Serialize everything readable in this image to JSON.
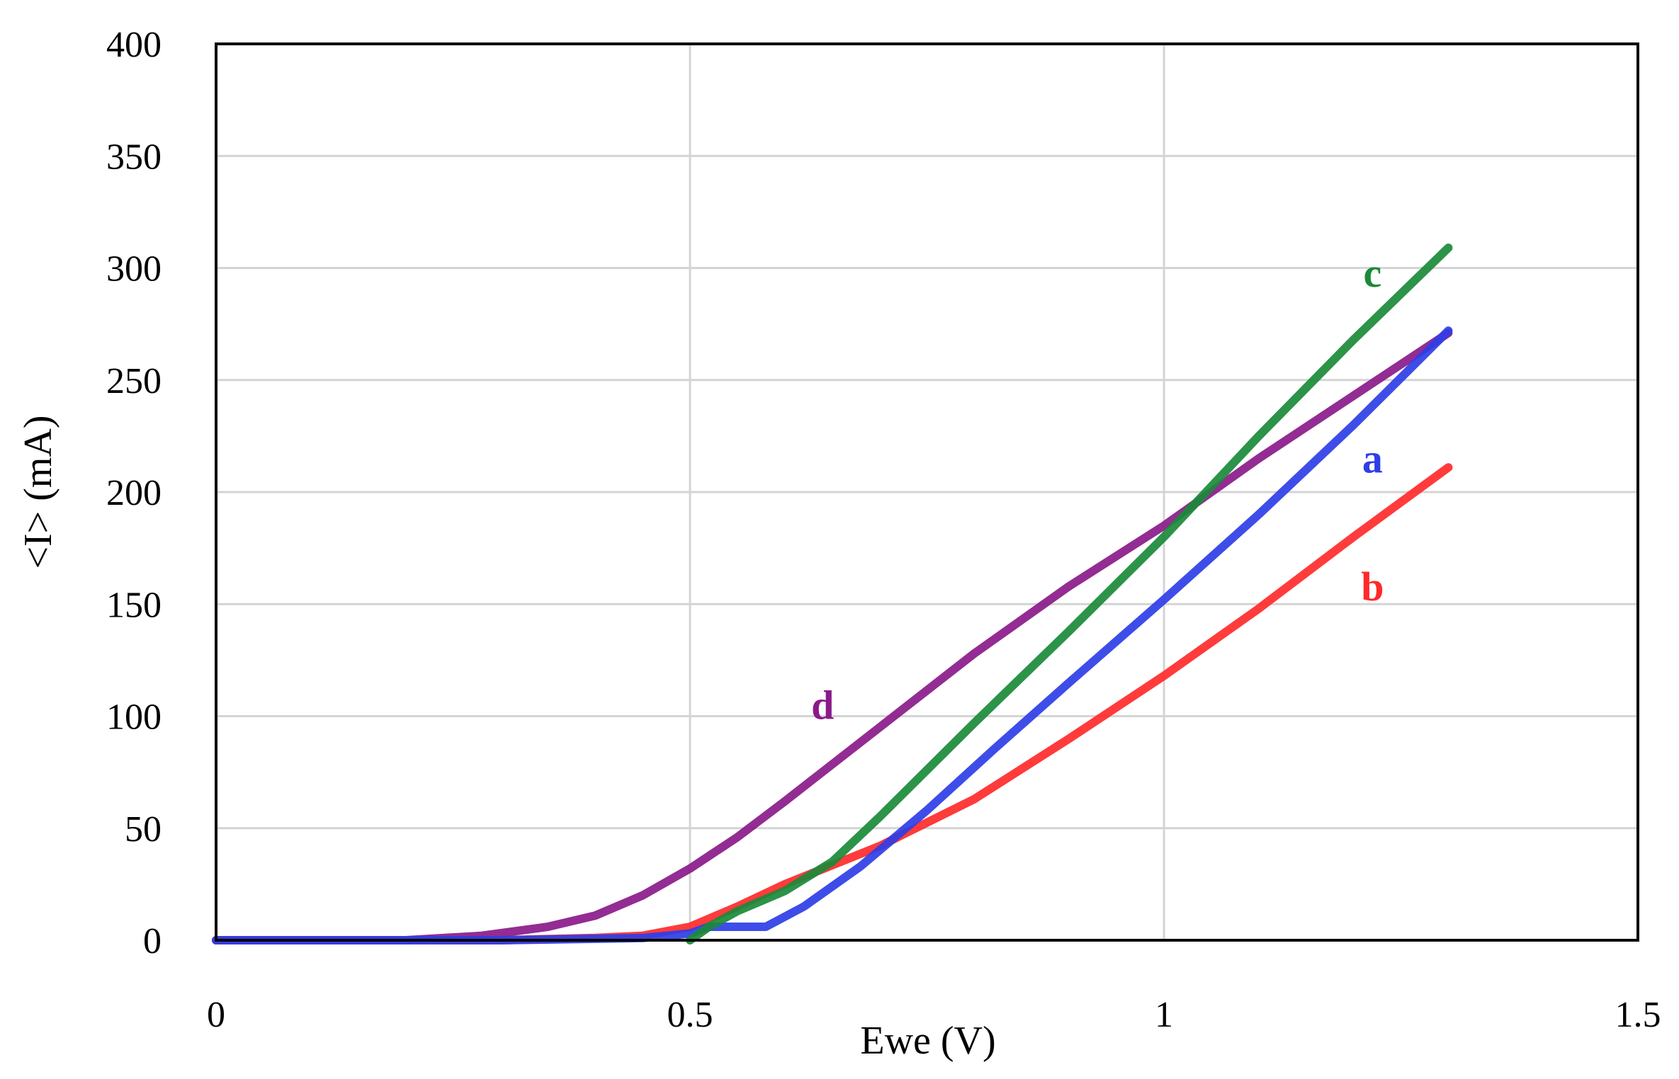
{
  "chart_data": {
    "type": "line",
    "title": "",
    "xlabel": "Ewe (V)",
    "ylabel": "<I> (mA)",
    "xlim": [
      0,
      1.5
    ],
    "ylim": [
      0,
      400
    ],
    "x_ticks": [
      "0",
      "0.5",
      "1",
      "1.5"
    ],
    "y_ticks": [
      "0",
      "50",
      "100",
      "150",
      "200",
      "250",
      "300",
      "350",
      "400"
    ],
    "grid": true,
    "legend": "none",
    "series": [
      {
        "name": "a",
        "color": "#2e3ee6",
        "points": [
          [
            0,
            0
          ],
          [
            0.3,
            0
          ],
          [
            0.45,
            1
          ],
          [
            0.5,
            3
          ],
          [
            0.52,
            6
          ],
          [
            0.55,
            6
          ],
          [
            0.58,
            6
          ],
          [
            0.62,
            15
          ],
          [
            0.68,
            33
          ],
          [
            0.75,
            58
          ],
          [
            0.82,
            85
          ],
          [
            0.9,
            115
          ],
          [
            1.0,
            152
          ],
          [
            1.1,
            190
          ],
          [
            1.2,
            230
          ],
          [
            1.3,
            272
          ]
        ]
      },
      {
        "name": "b",
        "color": "#ff2a2a",
        "points": [
          [
            0,
            0
          ],
          [
            0.3,
            0
          ],
          [
            0.4,
            1
          ],
          [
            0.45,
            2
          ],
          [
            0.5,
            6
          ],
          [
            0.55,
            15
          ],
          [
            0.6,
            25
          ],
          [
            0.7,
            42
          ],
          [
            0.8,
            63
          ],
          [
            0.9,
            90
          ],
          [
            1.0,
            118
          ],
          [
            1.1,
            148
          ],
          [
            1.2,
            180
          ],
          [
            1.3,
            211
          ]
        ]
      },
      {
        "name": "c",
        "color": "#1a8a3a",
        "points": [
          [
            0.5,
            0
          ],
          [
            0.52,
            6
          ],
          [
            0.55,
            13
          ],
          [
            0.6,
            22
          ],
          [
            0.65,
            35
          ],
          [
            0.7,
            55
          ],
          [
            0.8,
            97
          ],
          [
            0.9,
            138
          ],
          [
            1.0,
            180
          ],
          [
            1.1,
            225
          ],
          [
            1.2,
            268
          ],
          [
            1.3,
            309
          ]
        ]
      },
      {
        "name": "d",
        "color": "#8a1a8a",
        "points": [
          [
            0,
            0
          ],
          [
            0.2,
            0
          ],
          [
            0.28,
            2
          ],
          [
            0.35,
            6
          ],
          [
            0.4,
            11
          ],
          [
            0.45,
            20
          ],
          [
            0.5,
            32
          ],
          [
            0.55,
            46
          ],
          [
            0.6,
            62
          ],
          [
            0.7,
            95
          ],
          [
            0.8,
            128
          ],
          [
            0.9,
            158
          ],
          [
            1.0,
            185
          ],
          [
            1.1,
            215
          ],
          [
            1.2,
            243
          ],
          [
            1.3,
            271
          ]
        ]
      }
    ],
    "annotations": [
      {
        "text": "a",
        "x": 1.22,
        "y": 215,
        "color": "#2e3ee6"
      },
      {
        "text": "b",
        "x": 1.22,
        "y": 158,
        "color": "#ff2a2a"
      },
      {
        "text": "c",
        "x": 1.22,
        "y": 298,
        "color": "#1a8a3a"
      },
      {
        "text": "d",
        "x": 0.64,
        "y": 105,
        "color": "#8a1a8a"
      }
    ]
  }
}
